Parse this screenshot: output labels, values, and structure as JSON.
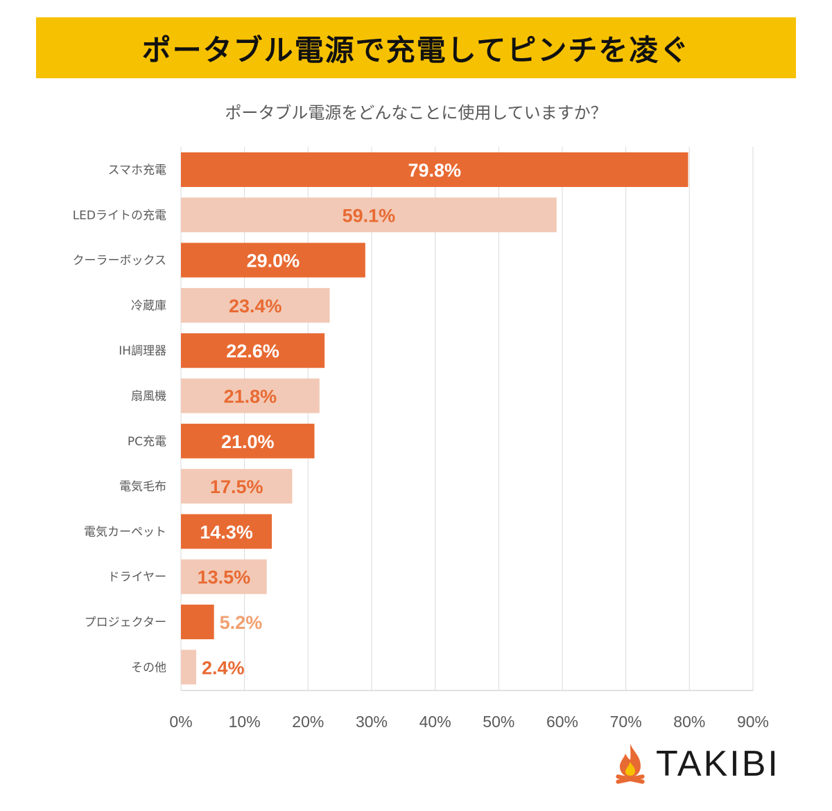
{
  "header": {
    "title": "ポータブル電源で充電してピンチを凌ぐ"
  },
  "chart_data": {
    "type": "bar",
    "orientation": "horizontal",
    "title": "ポータブル電源をどんなことに使用していますか？",
    "categories": [
      "スマホ充電",
      "LEDライトの充電",
      "クーラーボックス",
      "冷蔵庫",
      "IH調理器",
      "扇風機",
      "PC充電",
      "電気毛布",
      "電気カーペット",
      "ドライヤー",
      "プロジェクター",
      "その他"
    ],
    "values": [
      79.8,
      59.1,
      29.0,
      23.4,
      22.6,
      21.8,
      21.0,
      17.5,
      14.3,
      13.5,
      5.2,
      2.4
    ],
    "value_labels": [
      "79.8%",
      "59.1%",
      "29.0%",
      "23.4%",
      "22.6%",
      "21.8%",
      "21.0%",
      "17.5%",
      "14.3%",
      "13.5%",
      "5.2%",
      "2.4%"
    ],
    "xlim": [
      0,
      90
    ],
    "xticks": [
      "0%",
      "10%",
      "20%",
      "30%",
      "40%",
      "50%",
      "60%",
      "70%",
      "80%",
      "90%"
    ],
    "grid": true,
    "colors": {
      "dark": "#e86a33",
      "light": "#f2c9b6",
      "label_on_dark": "#ffffff",
      "label_on_light": "#e86a33",
      "label_outside_dark": "#f0a070",
      "grid": "#d9d9d9"
    }
  },
  "logo": {
    "text": "TAKIBI",
    "icon": "campfire-icon"
  }
}
